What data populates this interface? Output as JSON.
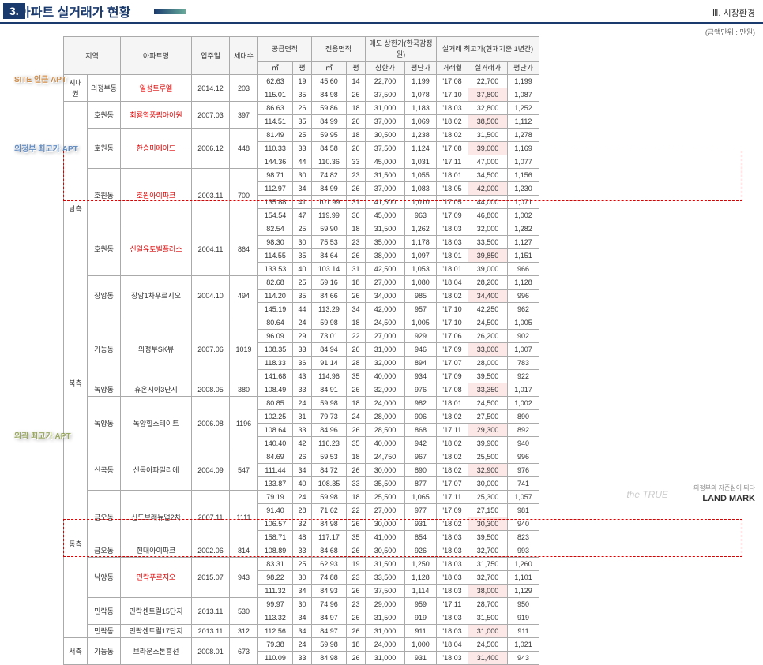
{
  "header": {
    "sectnum": "3.",
    "title": "아파트 실거래가 현황",
    "right": "Ⅲ. 시장환경",
    "unit": "(금액단위 : 만원)"
  },
  "thead": {
    "r1": [
      "지역",
      "",
      "아파트명",
      "입주일",
      "세대수",
      "공급면적",
      "",
      "전용면적",
      "",
      "매도 상한가(한국감정원)",
      "",
      "실거래 최고가(현재기준 1년간)",
      "",
      ""
    ],
    "r2": [
      "",
      "",
      "",
      "",
      "",
      "㎡",
      "평",
      "㎡",
      "평",
      "상한가",
      "평단가",
      "거래월",
      "실거래가",
      "평단가"
    ]
  },
  "labels": {
    "l1": "SITE 인근\nAPT",
    "l2": "의정부 최고가\nAPT",
    "l3": "외곽 최고가\nAPT"
  },
  "rows": [
    {
      "g1": "시내권",
      "g2": "의정부동",
      "apt": "일성트루엘",
      "red": 1,
      "date": "2014.12",
      "cnt": "203",
      "d": [
        "62.63",
        "19",
        "45.60",
        "14",
        "22,700",
        "1,199",
        "'17.08",
        "22,700",
        "1,199"
      ]
    },
    {
      "d": [
        "115.01",
        "35",
        "84.98",
        "26",
        "37,500",
        "1,078",
        "'17.10",
        "37,800",
        "1,087"
      ],
      "hl": 1
    },
    {
      "g1": "남측",
      "g2": "호원동",
      "apt": "회룡역풍림아이원",
      "red": 1,
      "date": "2007.03",
      "cnt": "397",
      "d": [
        "86.63",
        "26",
        "59.86",
        "18",
        "31,000",
        "1,183",
        "'18.03",
        "32,800",
        "1,252"
      ]
    },
    {
      "d": [
        "114.51",
        "35",
        "84.99",
        "26",
        "37,000",
        "1,069",
        "'18.02",
        "38,500",
        "1,112"
      ],
      "hl": 1
    },
    {
      "g2": "호원동",
      "apt": "한승미메이드",
      "red": 1,
      "date": "2006.12",
      "cnt": "448",
      "d": [
        "81.49",
        "25",
        "59.95",
        "18",
        "30,500",
        "1,238",
        "'18.02",
        "31,500",
        "1,278"
      ]
    },
    {
      "d": [
        "110.33",
        "33",
        "84.58",
        "26",
        "37,500",
        "1,124",
        "'17.08",
        "39,000",
        "1,169"
      ],
      "hl": 1
    },
    {
      "d": [
        "144.36",
        "44",
        "110.36",
        "33",
        "45,000",
        "1,031",
        "'17.11",
        "47,000",
        "1,077"
      ]
    },
    {
      "g2": "호원동",
      "apt": "호원아이파크",
      "red": 1,
      "date": "2003.11",
      "cnt": "700",
      "d": [
        "98.71",
        "30",
        "74.82",
        "23",
        "31,500",
        "1,055",
        "'18.01",
        "34,500",
        "1,156"
      ],
      "box": 1
    },
    {
      "d": [
        "112.97",
        "34",
        "84.99",
        "26",
        "37,000",
        "1,083",
        "'18.05",
        "42,000",
        "1,230"
      ],
      "hl": 1,
      "box": 1
    },
    {
      "d": [
        "135.88",
        "41",
        "101.99",
        "31",
        "41,500",
        "1,010",
        "'17.05",
        "44,000",
        "1,071"
      ],
      "box": 1
    },
    {
      "d": [
        "154.54",
        "47",
        "119.99",
        "36",
        "45,000",
        "963",
        "'17.09",
        "46,800",
        "1,002"
      ],
      "box": 1
    },
    {
      "g2": "호원동",
      "apt": "신일유토빌플러스",
      "red": 1,
      "date": "2004.11",
      "cnt": "864",
      "d": [
        "82.54",
        "25",
        "59.90",
        "18",
        "31,500",
        "1,262",
        "'18.03",
        "32,000",
        "1,282"
      ]
    },
    {
      "d": [
        "98.30",
        "30",
        "75.53",
        "23",
        "35,000",
        "1,178",
        "'18.03",
        "33,500",
        "1,127"
      ]
    },
    {
      "d": [
        "114.55",
        "35",
        "84.64",
        "26",
        "38,000",
        "1,097",
        "'18.01",
        "39,850",
        "1,151"
      ],
      "hl": 1
    },
    {
      "d": [
        "133.53",
        "40",
        "103.14",
        "31",
        "42,500",
        "1,053",
        "'18.01",
        "39,000",
        "966"
      ]
    },
    {
      "g2": "장암동",
      "apt": "장암1차푸르지오",
      "date": "2004.10",
      "cnt": "494",
      "d": [
        "82.68",
        "25",
        "59.16",
        "18",
        "27,000",
        "1,080",
        "'18.04",
        "28,200",
        "1,128"
      ]
    },
    {
      "d": [
        "114.20",
        "35",
        "84.66",
        "26",
        "34,000",
        "985",
        "'18.02",
        "34,400",
        "996"
      ],
      "hl": 1
    },
    {
      "d": [
        "145.19",
        "44",
        "113.29",
        "34",
        "42,000",
        "957",
        "'17.10",
        "42,250",
        "962"
      ]
    },
    {
      "g1": "북측",
      "g2": "가능동",
      "apt": "의정부SK뷰",
      "date": "2007.06",
      "cnt": "1019",
      "d": [
        "80.64",
        "24",
        "59.98",
        "18",
        "24,500",
        "1,005",
        "'17.10",
        "24,500",
        "1,005"
      ]
    },
    {
      "d": [
        "96.09",
        "29",
        "73.01",
        "22",
        "27,000",
        "929",
        "'17.06",
        "26,200",
        "902"
      ]
    },
    {
      "d": [
        "108.35",
        "33",
        "84.94",
        "26",
        "31,000",
        "946",
        "'17.09",
        "33,000",
        "1,007"
      ],
      "hl": 1
    },
    {
      "d": [
        "118.33",
        "36",
        "91.14",
        "28",
        "32,000",
        "894",
        "'17.07",
        "28,000",
        "783"
      ]
    },
    {
      "d": [
        "141.68",
        "43",
        "114.96",
        "35",
        "40,000",
        "934",
        "'17.09",
        "39,500",
        "922"
      ]
    },
    {
      "g2": "녹양동",
      "apt": "휴온시아3단지",
      "date": "2008.05",
      "cnt": "380",
      "d": [
        "108.49",
        "33",
        "84.91",
        "26",
        "32,000",
        "976",
        "'17.08",
        "33,350",
        "1,017"
      ],
      "hl": 1
    },
    {
      "g2": "녹양동",
      "apt": "녹양힐스테이트",
      "date": "2006.08",
      "cnt": "1196",
      "d": [
        "80.85",
        "24",
        "59.98",
        "18",
        "24,000",
        "982",
        "'18.01",
        "24,500",
        "1,002"
      ]
    },
    {
      "d": [
        "102.25",
        "31",
        "79.73",
        "24",
        "28,000",
        "906",
        "'18.02",
        "27,500",
        "890"
      ]
    },
    {
      "d": [
        "108.64",
        "33",
        "84.96",
        "26",
        "28,500",
        "868",
        "'17.11",
        "29,300",
        "892"
      ],
      "hl": 1
    },
    {
      "d": [
        "140.40",
        "42",
        "116.23",
        "35",
        "40,000",
        "942",
        "'18.02",
        "39,900",
        "940"
      ]
    },
    {
      "g1": "동측",
      "g2": "신곡동",
      "apt": "신동아파밀리에",
      "date": "2004.09",
      "cnt": "547",
      "d": [
        "84.69",
        "26",
        "59.53",
        "18",
        "24,750",
        "967",
        "'18.02",
        "25,500",
        "996"
      ]
    },
    {
      "d": [
        "111.44",
        "34",
        "84.72",
        "26",
        "30,000",
        "890",
        "'18.02",
        "32,900",
        "976"
      ],
      "hl": 1
    },
    {
      "d": [
        "133.87",
        "40",
        "108.35",
        "33",
        "35,500",
        "877",
        "'17.07",
        "30,000",
        "741"
      ]
    },
    {
      "g2": "금오동",
      "apt": "신도브래뉴업2차",
      "date": "2007.11",
      "cnt": "1111",
      "d": [
        "79.19",
        "24",
        "59.98",
        "18",
        "25,500",
        "1,065",
        "'17.11",
        "25,300",
        "1,057"
      ]
    },
    {
      "d": [
        "91.40",
        "28",
        "71.62",
        "22",
        "27,000",
        "977",
        "'17.09",
        "27,150",
        "981"
      ]
    },
    {
      "d": [
        "106.57",
        "32",
        "84.98",
        "26",
        "30,000",
        "931",
        "'18.02",
        "30,300",
        "940"
      ],
      "hl": 1
    },
    {
      "d": [
        "158.71",
        "48",
        "117.17",
        "35",
        "41,000",
        "854",
        "'18.03",
        "39,500",
        "823"
      ]
    },
    {
      "g2": "금오동",
      "apt": "현대아이파크",
      "date": "2002.06",
      "cnt": "814",
      "d": [
        "108.89",
        "33",
        "84.68",
        "26",
        "30,500",
        "926",
        "'18.03",
        "32,700",
        "993"
      ]
    },
    {
      "g2": "낙양동",
      "apt": "민락푸르지오",
      "red": 1,
      "date": "2015.07",
      "cnt": "943",
      "d": [
        "83.31",
        "25",
        "62.93",
        "19",
        "31,500",
        "1,250",
        "'18.03",
        "31,750",
        "1,260"
      ],
      "box": 1
    },
    {
      "d": [
        "98.22",
        "30",
        "74.88",
        "23",
        "33,500",
        "1,128",
        "'18.03",
        "32,700",
        "1,101"
      ],
      "box": 1
    },
    {
      "d": [
        "111.32",
        "34",
        "84.93",
        "26",
        "37,500",
        "1,114",
        "'18.03",
        "38,000",
        "1,129"
      ],
      "hl": 1,
      "box": 1
    },
    {
      "g2": "민락동",
      "apt": "민락센트럴15단지",
      "date": "2013.11",
      "cnt": "530",
      "d": [
        "99.97",
        "30",
        "74.96",
        "23",
        "29,000",
        "959",
        "'17.11",
        "28,700",
        "950"
      ]
    },
    {
      "d": [
        "113.32",
        "34",
        "84.97",
        "26",
        "31,500",
        "919",
        "'18.03",
        "31,500",
        "919"
      ]
    },
    {
      "g2": "민락동",
      "apt": "민락센트럴17단지",
      "date": "2013.11",
      "cnt": "312",
      "d": [
        "112.56",
        "34",
        "84.97",
        "26",
        "31,000",
        "911",
        "'18.03",
        "31,000",
        "911"
      ],
      "hl": 1
    },
    {
      "g1": "서측",
      "g2": "가능동",
      "apt": "브라운스톤흥선",
      "date": "2008.01",
      "cnt": "673",
      "d": [
        "79.38",
        "24",
        "59.98",
        "18",
        "24,000",
        "1,000",
        "'18.04",
        "24,500",
        "1,021"
      ]
    },
    {
      "d": [
        "110.09",
        "33",
        "84.98",
        "26",
        "31,000",
        "931",
        "'18.03",
        "31,400",
        "943"
      ],
      "hl": 1
    }
  ],
  "wm": {
    "true": "the TRUE",
    "kr": "의정부의 자존심이 되다",
    "brand": "LAND MARK"
  }
}
